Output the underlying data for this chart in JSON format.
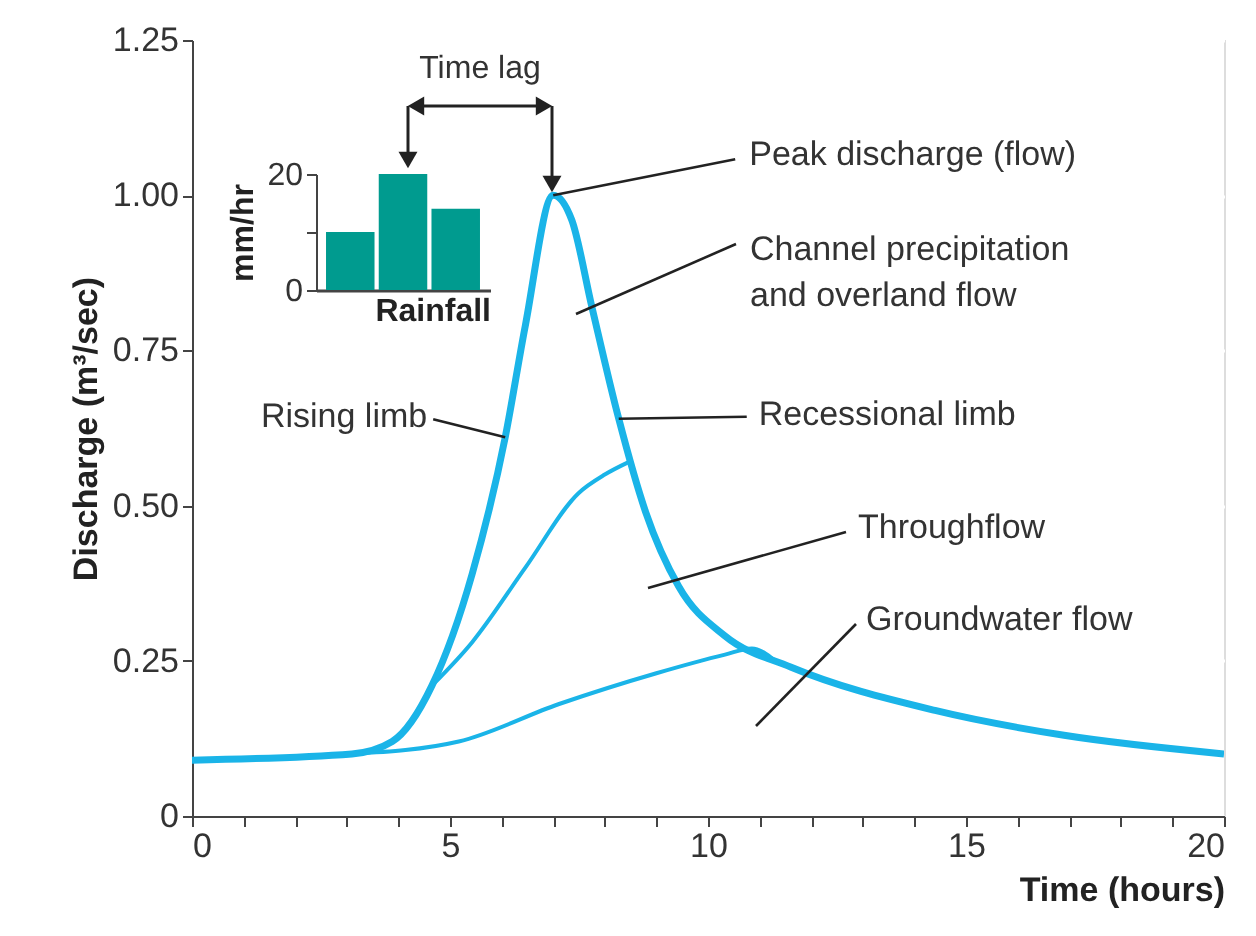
{
  "chart_data": [
    {
      "type": "line",
      "xlabel": "Time (hours)",
      "ylabel": "Discharge (m³/sec)",
      "xlim": [
        0,
        20
      ],
      "ylim": [
        0,
        1.25
      ],
      "xticks": [
        0,
        {
          "value": 1,
          "label": null
        },
        {
          "value": 2,
          "label": null
        },
        {
          "value": 3,
          "label": null
        },
        {
          "value": 4,
          "label": null
        },
        5,
        {
          "value": 6,
          "label": null
        },
        {
          "value": 7,
          "label": null
        },
        {
          "value": 8,
          "label": null
        },
        {
          "value": 9,
          "label": null
        },
        10,
        {
          "value": 11,
          "label": null
        },
        {
          "value": 12,
          "label": null
        },
        {
          "value": 13,
          "label": null
        },
        {
          "value": 14,
          "label": null
        },
        15,
        {
          "value": 16,
          "label": null
        },
        {
          "value": 17,
          "label": null
        },
        {
          "value": 18,
          "label": null
        },
        {
          "value": 19,
          "label": null
        },
        20
      ],
      "yticks": [
        0,
        0.25,
        {
          "value": 0.5,
          "label": "0.50"
        },
        0.75,
        {
          "value": 1.0,
          "label": "1.00"
        },
        1.25
      ],
      "grid": "y",
      "legend": false,
      "marker": "none",
      "line_style": "solid",
      "series": [
        {
          "color": "#1ab4e8",
          "x": [
            0,
            3.1,
            3.88,
            4.65,
            5.43,
            6.07,
            6.46,
            7,
            7.36,
            7.75,
            8.27,
            8.79,
            9.43,
            10.33,
            11.6,
            14.4,
            16.9,
            20
          ],
          "values": [
            0.09,
            0.1,
            0.12,
            0.21,
            0.39,
            0.61,
            0.79,
            1.0,
            0.96,
            0.82,
            0.64,
            0.49,
            0.37,
            0.29,
            0.24,
            0.17,
            0.13,
            0.1
          ]
        },
        {
          "color": "#1ab4e8",
          "x": [
            4.65,
            5.43,
            6.46,
            7.49,
            8.0,
            8.46
          ],
          "values": [
            0.21,
            0.28,
            0.4,
            0.52,
            0.55,
            0.57
          ]
        },
        {
          "color": "#1ab4e8",
          "x": [
            3.1,
            5.17,
            7.1,
            9.0,
            10.33,
            10.85,
            11.3
          ],
          "values": [
            0.1,
            0.12,
            0.18,
            0.23,
            0.26,
            0.27,
            0.25
          ]
        }
      ],
      "annotations": [
        "Time lag",
        {
          "text": "Peak discharge (flow)",
          "x": 7,
          "y": 1.0
        },
        "Channel precipitation\nand overland flow",
        {
          "text": "Rising limb",
          "x": 6.07,
          "y": 0.61
        },
        {
          "text": "Recessional limb",
          "x": 8.27,
          "y": 0.64
        },
        "Throughflow",
        "Groundwater flow"
      ]
    },
    {
      "type": "bar",
      "categories": [
        null,
        null,
        null
      ],
      "values": [
        10,
        20,
        14
      ],
      "color": "#009b8f",
      "ylabel": "mm/hr",
      "xlabel": "Rainfall",
      "ylim": [
        0,
        20
      ],
      "yticks": [
        0,
        {
          "value": 10,
          "label": null
        },
        20
      ]
    }
  ]
}
